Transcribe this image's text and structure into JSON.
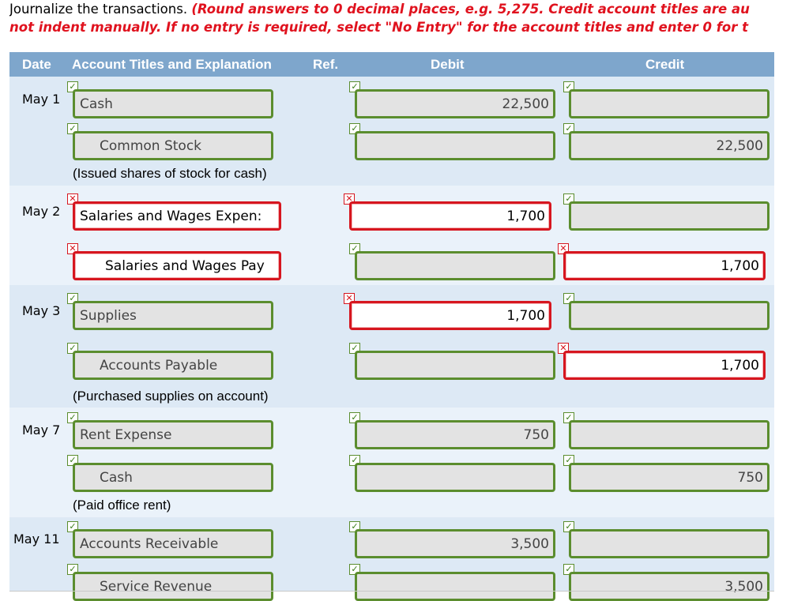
{
  "instructions": {
    "prefix": "Journalize the transactions. ",
    "line1_red": "(Round answers to 0 decimal places, e.g. 5,275. Credit account titles are au",
    "line2_red": "not indent manually. If no entry is required, select \"No Entry\" for the account titles and enter 0 for t"
  },
  "header": {
    "date": "Date",
    "account": "Account Titles and Explanation",
    "ref": "Ref.",
    "debit": "Debit",
    "credit": "Credit"
  },
  "entries": [
    {
      "date": "May 1",
      "lines": [
        {
          "account": "Cash",
          "debit": "22,500",
          "credit": ""
        },
        {
          "account": "Common Stock",
          "debit": "",
          "credit": "22,500"
        }
      ],
      "explanation": "(Issued shares of stock for cash)"
    },
    {
      "date": "May 2",
      "lines": [
        {
          "account": "Salaries and Wages Expen:",
          "debit": "1,700",
          "credit": ""
        },
        {
          "account": "Salaries and Wages Pay",
          "debit": "",
          "credit": "1,700"
        }
      ],
      "explanation": ""
    },
    {
      "date": "May 3",
      "lines": [
        {
          "account": "Supplies",
          "debit": "1,700",
          "credit": ""
        },
        {
          "account": "Accounts Payable",
          "debit": "",
          "credit": "1,700"
        }
      ],
      "explanation": "(Purchased supplies on account)"
    },
    {
      "date": "May 7",
      "lines": [
        {
          "account": "Rent Expense",
          "debit": "750",
          "credit": ""
        },
        {
          "account": "Cash",
          "debit": "",
          "credit": "750"
        }
      ],
      "explanation": "(Paid office rent)"
    },
    {
      "date": "May 11",
      "lines": [
        {
          "account": "Accounts Receivable",
          "debit": "3,500",
          "credit": ""
        },
        {
          "account": "Service Revenue",
          "debit": "",
          "credit": "3,500"
        }
      ],
      "explanation": ""
    }
  ],
  "marks": {
    "correct": "✓",
    "incorrect": "✕"
  },
  "colors": {
    "header_bg": "#7ea6cc",
    "correct_border": "#5b8d2e",
    "incorrect_border": "#d6161f",
    "instruction_red": "#e0121e"
  }
}
